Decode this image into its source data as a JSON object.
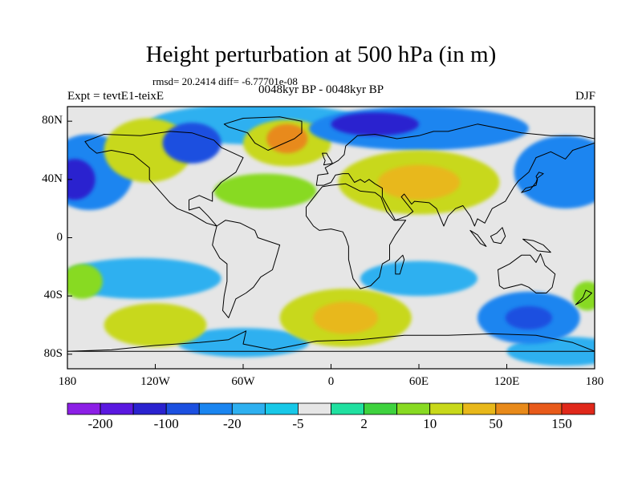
{
  "title": "Height perturbation at 500 hPa (in m)",
  "stats": "rmsd= 20.2414 diff= -6.77701e-08",
  "experiment": "Expt = tevtE1-teixE",
  "period": "0048kyr BP - 0048kyr BP",
  "season": "DJF",
  "axes": {
    "lat_labels": [
      "80N",
      "40N",
      "0",
      "40S",
      "80S"
    ],
    "lon_labels": [
      "180",
      "120W",
      "60W",
      "0",
      "60E",
      "120E",
      "180"
    ]
  },
  "colorbar": {
    "colors": [
      "#8c1fe6",
      "#5a18e0",
      "#2a22cf",
      "#1c50e0",
      "#1a85f0",
      "#2eb0f0",
      "#18c8e8",
      "#e6e6e6",
      "#20e0a0",
      "#3ed23e",
      "#88da22",
      "#c8d81a",
      "#e8b81a",
      "#e88a1a",
      "#e85a1a",
      "#e0281a"
    ],
    "labels": [
      "-200",
      "-100",
      "-20",
      "-5",
      "2",
      "10",
      "50",
      "150"
    ]
  },
  "map_data": {
    "background_level": 7,
    "blobs": [
      {
        "level": 4,
        "lon": -165,
        "lat": 45,
        "rlon": 30,
        "rlat": 26
      },
      {
        "level": 2,
        "lon": -175,
        "lat": 40,
        "rlon": 14,
        "rlat": 14
      },
      {
        "level": 5,
        "lon": -50,
        "lat": 78,
        "rlon": 75,
        "rlat": 14
      },
      {
        "level": 11,
        "lon": -125,
        "lat": 60,
        "rlon": 30,
        "rlat": 22
      },
      {
        "level": 3,
        "lon": -95,
        "lat": 65,
        "rlon": 20,
        "rlat": 14
      },
      {
        "level": 11,
        "lon": -30,
        "lat": 65,
        "rlon": 30,
        "rlat": 16
      },
      {
        "level": 13,
        "lon": -30,
        "lat": 68,
        "rlon": 14,
        "rlat": 10
      },
      {
        "level": 4,
        "lon": 60,
        "lat": 75,
        "rlon": 75,
        "rlat": 15
      },
      {
        "level": 2,
        "lon": 30,
        "lat": 78,
        "rlon": 30,
        "rlat": 8
      },
      {
        "level": 11,
        "lon": 60,
        "lat": 38,
        "rlon": 55,
        "rlat": 22
      },
      {
        "level": 12,
        "lon": 60,
        "lat": 38,
        "rlon": 28,
        "rlat": 12
      },
      {
        "level": 4,
        "lon": 160,
        "lat": 45,
        "rlon": 35,
        "rlat": 25
      },
      {
        "level": 10,
        "lon": -45,
        "lat": 32,
        "rlon": 35,
        "rlat": 12
      },
      {
        "level": 5,
        "lon": -130,
        "lat": -28,
        "rlon": 55,
        "rlat": 14
      },
      {
        "level": 5,
        "lon": 60,
        "lat": -28,
        "rlon": 40,
        "rlat": 12
      },
      {
        "level": 5,
        "lon": -60,
        "lat": -72,
        "rlon": 45,
        "rlat": 10
      },
      {
        "level": 5,
        "lon": 160,
        "lat": -78,
        "rlon": 40,
        "rlat": 10
      },
      {
        "level": 11,
        "lon": -120,
        "lat": -60,
        "rlon": 35,
        "rlat": 15
      },
      {
        "level": 11,
        "lon": 10,
        "lat": -55,
        "rlon": 45,
        "rlat": 20
      },
      {
        "level": 12,
        "lon": 10,
        "lat": -55,
        "rlon": 22,
        "rlat": 11
      },
      {
        "level": 4,
        "lon": 135,
        "lat": -55,
        "rlon": 35,
        "rlat": 18
      },
      {
        "level": 3,
        "lon": 135,
        "lat": -55,
        "rlon": 16,
        "rlat": 8
      },
      {
        "level": 10,
        "lon": -170,
        "lat": -30,
        "rlon": 14,
        "rlat": 12
      },
      {
        "level": 10,
        "lon": 175,
        "lat": -40,
        "rlon": 10,
        "rlat": 10
      }
    ],
    "coast": [
      {
        "name": "north-america",
        "points": [
          [
            -168,
            66
          ],
          [
            -155,
            71
          ],
          [
            -130,
            70
          ],
          [
            -110,
            73
          ],
          [
            -95,
            72
          ],
          [
            -80,
            67
          ],
          [
            -75,
            62
          ],
          [
            -60,
            55
          ],
          [
            -65,
            45
          ],
          [
            -75,
            38
          ],
          [
            -81,
            31
          ],
          [
            -81,
            25
          ],
          [
            -90,
            29
          ],
          [
            -97,
            26
          ],
          [
            -97,
            19
          ],
          [
            -90,
            21
          ],
          [
            -84,
            15
          ],
          [
            -78,
            8
          ],
          [
            -85,
            10
          ],
          [
            -95,
            16
          ],
          [
            -105,
            20
          ],
          [
            -110,
            24
          ],
          [
            -117,
            32
          ],
          [
            -124,
            40
          ],
          [
            -124,
            48
          ],
          [
            -135,
            57
          ],
          [
            -150,
            60
          ],
          [
            -160,
            58
          ],
          [
            -165,
            62
          ],
          [
            -168,
            66
          ]
        ]
      },
      {
        "name": "south-america",
        "points": [
          [
            -78,
            8
          ],
          [
            -72,
            12
          ],
          [
            -62,
            10
          ],
          [
            -52,
            5
          ],
          [
            -50,
            0
          ],
          [
            -35,
            -5
          ],
          [
            -37,
            -12
          ],
          [
            -40,
            -22
          ],
          [
            -48,
            -27
          ],
          [
            -53,
            -34
          ],
          [
            -58,
            -38
          ],
          [
            -65,
            -42
          ],
          [
            -68,
            -50
          ],
          [
            -70,
            -55
          ],
          [
            -74,
            -50
          ],
          [
            -73,
            -40
          ],
          [
            -71,
            -30
          ],
          [
            -71,
            -18
          ],
          [
            -76,
            -14
          ],
          [
            -81,
            -5
          ],
          [
            -80,
            0
          ],
          [
            -78,
            8
          ]
        ]
      },
      {
        "name": "greenland",
        "points": [
          [
            -73,
            78
          ],
          [
            -60,
            82
          ],
          [
            -35,
            83
          ],
          [
            -20,
            80
          ],
          [
            -20,
            72
          ],
          [
            -25,
            68
          ],
          [
            -43,
            60
          ],
          [
            -52,
            65
          ],
          [
            -57,
            72
          ],
          [
            -70,
            76
          ],
          [
            -73,
            78
          ]
        ]
      },
      {
        "name": "eurasia",
        "points": [
          [
            -10,
            36
          ],
          [
            -9,
            43
          ],
          [
            -2,
            44
          ],
          [
            -4,
            48
          ],
          [
            5,
            53
          ],
          [
            9,
            57
          ],
          [
            10,
            63
          ],
          [
            18,
            70
          ],
          [
            30,
            71
          ],
          [
            45,
            68
          ],
          [
            60,
            70
          ],
          [
            70,
            73
          ],
          [
            80,
            73
          ],
          [
            100,
            78
          ],
          [
            110,
            76
          ],
          [
            130,
            72
          ],
          [
            150,
            70
          ],
          [
            170,
            70
          ],
          [
            180,
            68
          ],
          [
            180,
            65
          ],
          [
            165,
            60
          ],
          [
            160,
            54
          ],
          [
            150,
            59
          ],
          [
            140,
            55
          ],
          [
            135,
            45
          ],
          [
            128,
            39
          ],
          [
            125,
            35
          ],
          [
            122,
            30
          ],
          [
            119,
            25
          ],
          [
            110,
            20
          ],
          [
            108,
            16
          ],
          [
            105,
            10
          ],
          [
            100,
            13
          ],
          [
            98,
            8
          ],
          [
            95,
            15
          ],
          [
            90,
            22
          ],
          [
            85,
            20
          ],
          [
            80,
            15
          ],
          [
            77,
            8
          ],
          [
            72,
            20
          ],
          [
            67,
            24
          ],
          [
            57,
            25
          ],
          [
            55,
            23
          ],
          [
            50,
            30
          ],
          [
            48,
            28
          ],
          [
            56,
            18
          ],
          [
            52,
            15
          ],
          [
            44,
            12
          ],
          [
            35,
            28
          ],
          [
            35,
            34
          ],
          [
            30,
            37
          ],
          [
            26,
            40
          ],
          [
            23,
            38
          ],
          [
            20,
            40
          ],
          [
            16,
            38
          ],
          [
            12,
            44
          ],
          [
            8,
            44
          ],
          [
            3,
            43
          ],
          [
            0,
            38
          ],
          [
            -5,
            36
          ],
          [
            -10,
            36
          ]
        ]
      },
      {
        "name": "africa",
        "points": [
          [
            -17,
            21
          ],
          [
            -17,
            15
          ],
          [
            -12,
            8
          ],
          [
            -8,
            5
          ],
          [
            0,
            6
          ],
          [
            8,
            4
          ],
          [
            10,
            0
          ],
          [
            12,
            -6
          ],
          [
            12,
            -15
          ],
          [
            15,
            -28
          ],
          [
            20,
            -35
          ],
          [
            27,
            -33
          ],
          [
            33,
            -27
          ],
          [
            35,
            -18
          ],
          [
            40,
            -15
          ],
          [
            40,
            -5
          ],
          [
            44,
            2
          ],
          [
            51,
            12
          ],
          [
            43,
            12
          ],
          [
            38,
            18
          ],
          [
            34,
            28
          ],
          [
            30,
            31
          ],
          [
            20,
            32
          ],
          [
            10,
            37
          ],
          [
            0,
            36
          ],
          [
            -6,
            35
          ],
          [
            -10,
            30
          ],
          [
            -17,
            21
          ]
        ]
      },
      {
        "name": "australia",
        "points": [
          [
            114,
            -22
          ],
          [
            122,
            -18
          ],
          [
            130,
            -12
          ],
          [
            136,
            -12
          ],
          [
            140,
            -17
          ],
          [
            143,
            -11
          ],
          [
            146,
            -19
          ],
          [
            153,
            -25
          ],
          [
            151,
            -34
          ],
          [
            147,
            -38
          ],
          [
            140,
            -38
          ],
          [
            135,
            -34
          ],
          [
            130,
            -32
          ],
          [
            118,
            -35
          ],
          [
            115,
            -33
          ],
          [
            114,
            -22
          ]
        ]
      },
      {
        "name": "antarctica",
        "points": [
          [
            -180,
            -78
          ],
          [
            -150,
            -77
          ],
          [
            -120,
            -74
          ],
          [
            -90,
            -72
          ],
          [
            -70,
            -70
          ],
          [
            -58,
            -64
          ],
          [
            -60,
            -73
          ],
          [
            -40,
            -77
          ],
          [
            -10,
            -71
          ],
          [
            20,
            -70
          ],
          [
            50,
            -67
          ],
          [
            80,
            -67
          ],
          [
            110,
            -66
          ],
          [
            140,
            -67
          ],
          [
            165,
            -72
          ],
          [
            180,
            -78
          ]
        ]
      },
      {
        "name": "japan",
        "points": [
          [
            130,
            31
          ],
          [
            133,
            34
          ],
          [
            137,
            35
          ],
          [
            140,
            36
          ],
          [
            141,
            40
          ],
          [
            140,
            42
          ],
          [
            142,
            45
          ],
          [
            145,
            44
          ],
          [
            141,
            41
          ],
          [
            140,
            38
          ],
          [
            136,
            33
          ],
          [
            130,
            31
          ]
        ]
      },
      {
        "name": "great-britain",
        "points": [
          [
            -5,
            50
          ],
          [
            1,
            51
          ],
          [
            0,
            53
          ],
          [
            -2,
            56
          ],
          [
            -3,
            58
          ],
          [
            -6,
            58
          ],
          [
            -5,
            55
          ],
          [
            -4,
            53
          ],
          [
            -5,
            50
          ]
        ]
      },
      {
        "name": "madagascar",
        "points": [
          [
            44,
            -25
          ],
          [
            47,
            -25
          ],
          [
            50,
            -15
          ],
          [
            49,
            -12
          ],
          [
            44,
            -17
          ],
          [
            44,
            -25
          ]
        ]
      },
      {
        "name": "new-zealand",
        "points": [
          [
            167,
            -46
          ],
          [
            172,
            -41
          ],
          [
            174,
            -36
          ],
          [
            178,
            -38
          ],
          [
            175,
            -41
          ],
          [
            171,
            -44
          ],
          [
            167,
            -46
          ]
        ]
      },
      {
        "name": "sumatra",
        "points": [
          [
            95,
            5
          ],
          [
            100,
            2
          ],
          [
            106,
            -6
          ],
          [
            102,
            -4
          ],
          [
            95,
            5
          ]
        ]
      },
      {
        "name": "borneo",
        "points": [
          [
            109,
            1
          ],
          [
            111,
            -3
          ],
          [
            116,
            -4
          ],
          [
            119,
            1
          ],
          [
            117,
            7
          ],
          [
            113,
            3
          ],
          [
            109,
            1
          ]
        ]
      },
      {
        "name": "new-guinea",
        "points": [
          [
            131,
            -1
          ],
          [
            138,
            -2
          ],
          [
            145,
            -5
          ],
          [
            150,
            -10
          ],
          [
            141,
            -9
          ],
          [
            135,
            -4
          ],
          [
            131,
            -1
          ]
        ]
      }
    ]
  }
}
